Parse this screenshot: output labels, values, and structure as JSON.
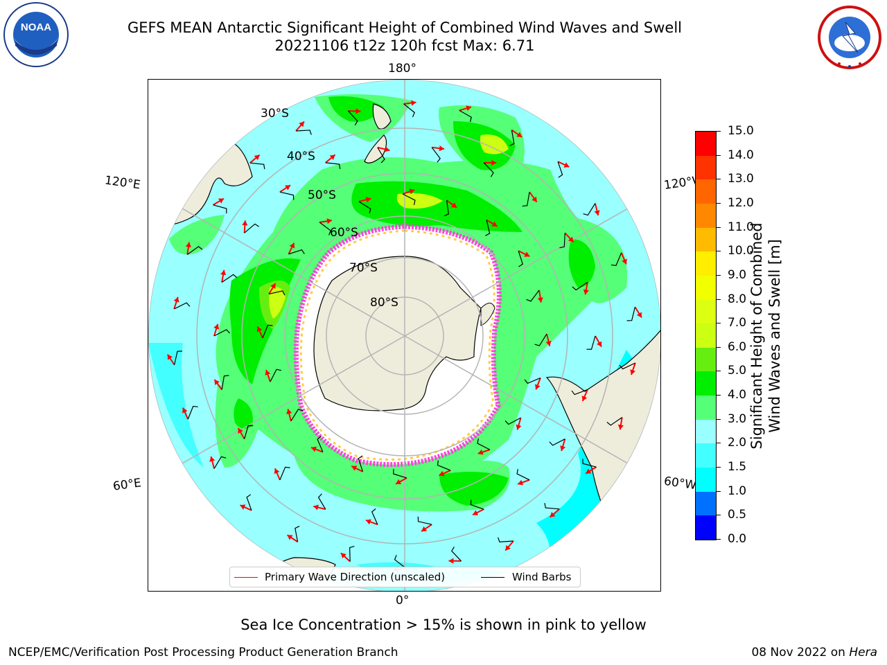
{
  "title": {
    "line1": "GEFS MEAN Antarctic Significant Height of Combined Wind Waves and Swell",
    "line2": "20221106 t12z 120h fcst   Max: 6.71"
  },
  "logos": {
    "noaa": {
      "label": "NOAA",
      "ring_text": "NATIONAL OCEANIC AND ATMOSPHERIC ADMINISTRATION · U.S. DEPARTMENT OF COMMERCE"
    },
    "nws": {
      "ring_text": "NATIONAL WEATHER SERVICE"
    }
  },
  "map": {
    "projection": "south-polar-stereographic",
    "lon_labels": {
      "top": "180°",
      "bottom": "0°",
      "left_upper": "120°E",
      "left_lower": "60°E",
      "right_upper": "120°W",
      "right_lower": "60°W"
    },
    "lat_labels": [
      "30°S",
      "40°S",
      "50°S",
      "60°S",
      "70°S",
      "80°S"
    ],
    "max_value": 6.71,
    "colors": {
      "land": "#eeeddc",
      "ocean_low": "#00ffff",
      "ocean_mid": "#99ffff",
      "wave_3_4": "#55ff77",
      "wave_4_5": "#00ee00",
      "wave_5_6": "#66ee11",
      "wave_6_7": "#ccff11",
      "ice_pink": "#ff44dd",
      "ice_yellow": "#ffcc44",
      "arrow": "#ff0000",
      "barb": "#000000",
      "grid": "#b4b4b4"
    }
  },
  "colorbar": {
    "label_line1": "Significant Height of Combined",
    "label_line2": "Wind Waves and Swell [m]",
    "ticks": [
      "0.0",
      "0.5",
      "1.0",
      "1.5",
      "2.0",
      "3.0",
      "4.0",
      "5.0",
      "6.0",
      "7.0",
      "8.0",
      "9.0",
      "10.0",
      "11.0",
      "12.0",
      "13.0",
      "14.0",
      "15.0"
    ],
    "colors": [
      "#0000ff",
      "#0070ff",
      "#00ffff",
      "#44ffff",
      "#99ffff",
      "#55ff77",
      "#00ee00",
      "#66ee11",
      "#ccff11",
      "#ddff11",
      "#f2ff00",
      "#ffee00",
      "#ffbb00",
      "#ff8800",
      "#ff6600",
      "#ff3300",
      "#ff0000"
    ]
  },
  "legend": {
    "wave_direction": "Primary Wave Direction (unscaled)",
    "wind_barbs": "Wind Barbs"
  },
  "footer": {
    "note": "Sea Ice Concentration > 15% is shown in pink to yellow",
    "credit": "NCEP/EMC/Verification Post Processing Product Generation Branch",
    "date": "08 Nov 2022 on",
    "machine": "Hera"
  }
}
